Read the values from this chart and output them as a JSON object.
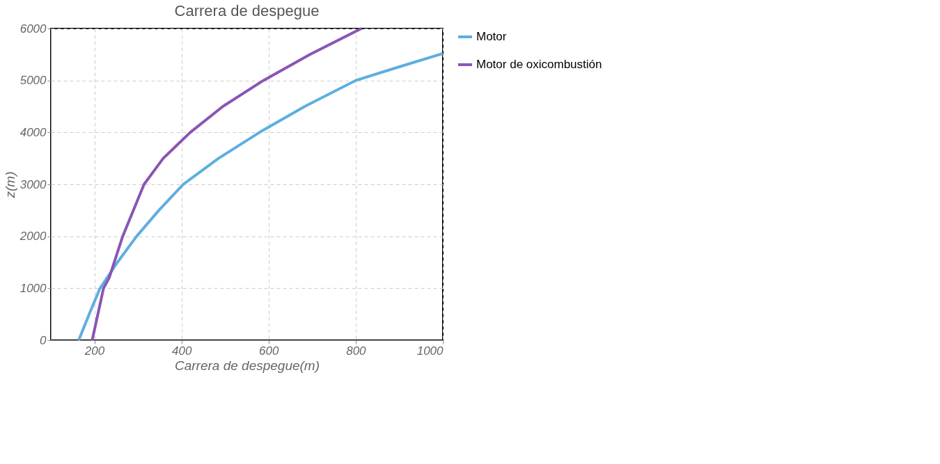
{
  "chart_data": {
    "type": "line",
    "title": "Carrera de despegue",
    "xlabel": "Carrera de despegue(m)",
    "ylabel": "z(m)",
    "xlim": [
      100,
      1000
    ],
    "xticks": [
      200,
      400,
      600,
      800,
      1000
    ],
    "ylim": [
      0,
      6000
    ],
    "yticks": [
      0,
      1000,
      2000,
      3000,
      4000,
      5000,
      6000
    ],
    "grid": true,
    "legend": "right",
    "series": [
      {
        "name": "Motor",
        "color": "#5eaee0",
        "x": [
          164,
          188,
          213,
          253,
          297,
          348,
          404,
          485,
          579,
          683,
          800,
          895,
          1000
        ],
        "values": [
          0,
          500,
          1000,
          1500,
          2000,
          2500,
          3000,
          3500,
          4000,
          4500,
          5000,
          5250,
          5520
        ]
      },
      {
        "name": "Motor de oxicombustión",
        "color": "#8a55b5",
        "x": [
          195,
          208,
          221,
          234,
          265,
          314,
          358,
          420,
          495,
          588,
          695,
          813
        ],
        "values": [
          0,
          500,
          1000,
          1200,
          2000,
          3000,
          3500,
          4000,
          4500,
          5000,
          5500,
          6000
        ]
      }
    ]
  }
}
